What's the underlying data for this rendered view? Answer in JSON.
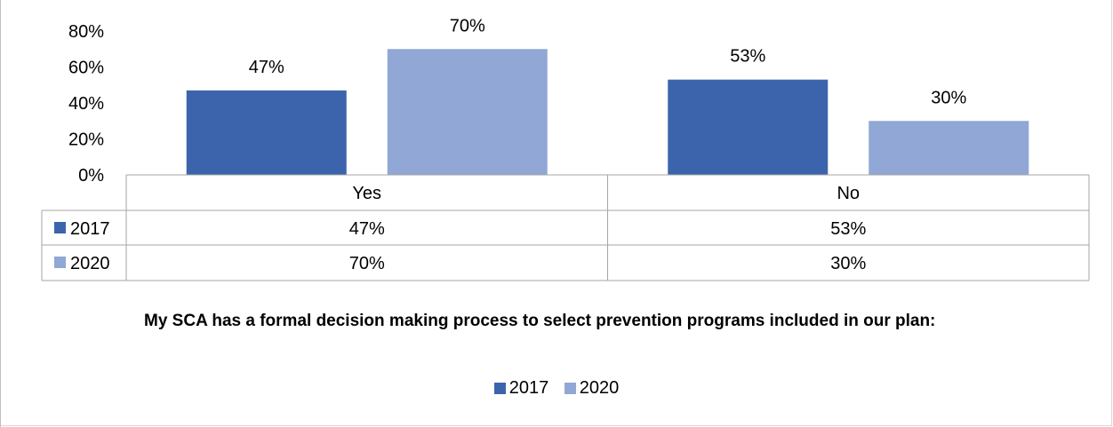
{
  "chart_data": {
    "type": "bar",
    "categories": [
      "Yes",
      "No"
    ],
    "series": [
      {
        "name": "2017",
        "values": [
          47,
          53
        ],
        "labels": [
          "47%",
          "53%"
        ],
        "color": "#3c64ad"
      },
      {
        "name": "2020",
        "values": [
          70,
          30
        ],
        "labels": [
          "70%",
          "30%"
        ],
        "color": "#91a7d6"
      }
    ],
    "ylim": [
      0,
      80
    ],
    "yticks": [
      "0%",
      "20%",
      "40%",
      "60%",
      "80%"
    ],
    "grid": false,
    "data_table": true,
    "legend_position": "bottom",
    "note": "My SCA has a formal decision making process to select prevention programs included in our plan:"
  }
}
